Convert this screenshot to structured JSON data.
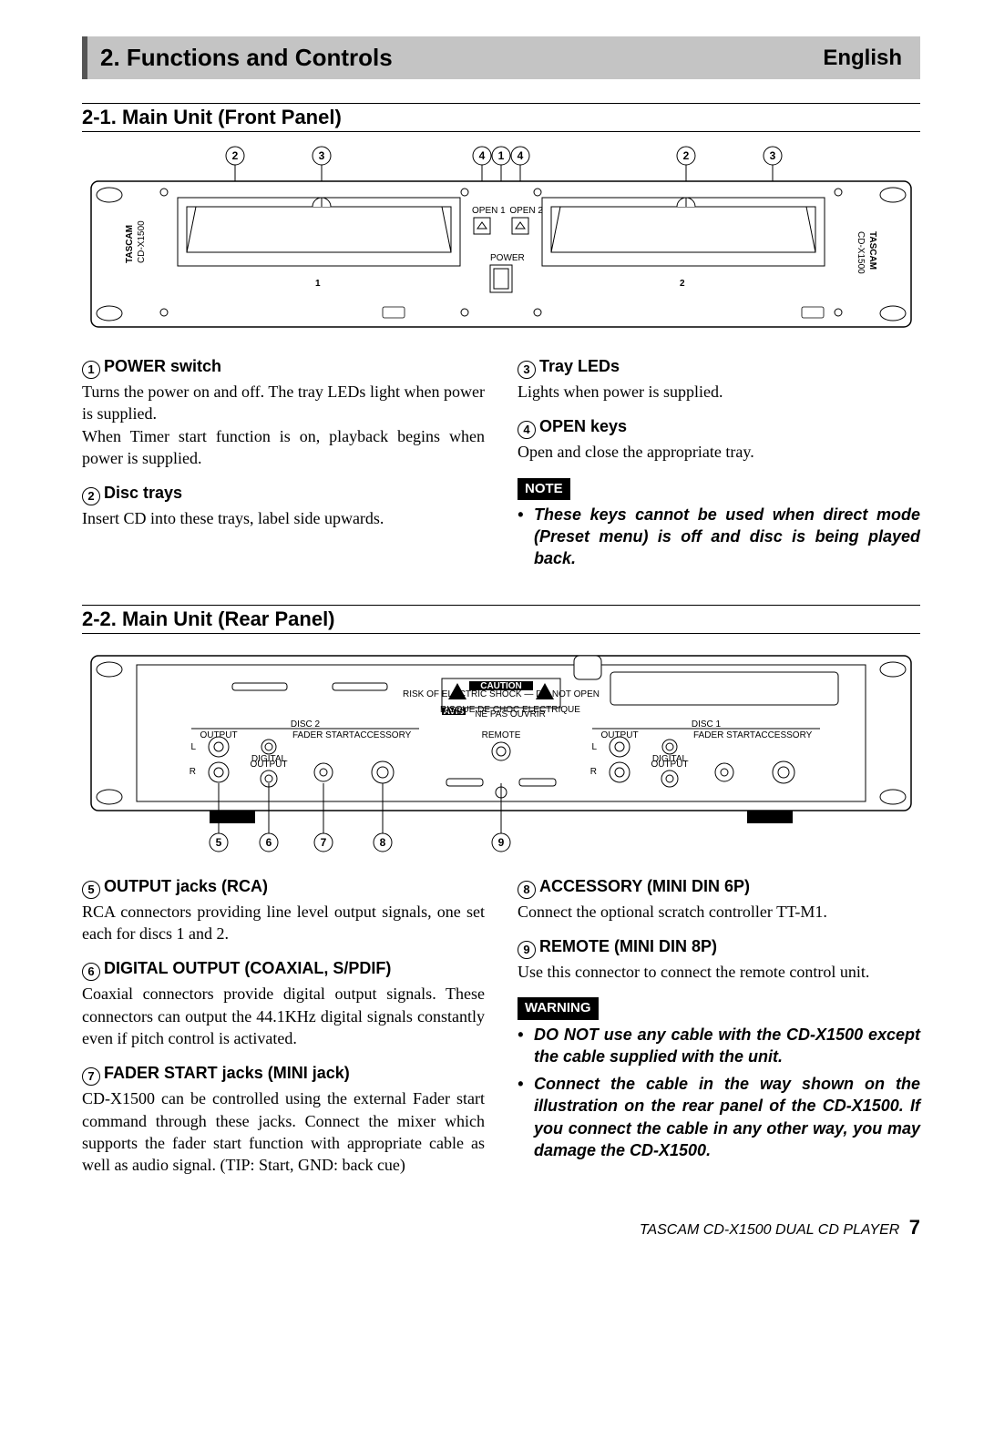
{
  "header": {
    "title": "2. Functions and Controls",
    "lang": "English"
  },
  "section1": {
    "title": "2-1. Main Unit (Front Panel)",
    "callouts_top": [
      "2",
      "3",
      "4",
      "1",
      "4",
      "2",
      "3"
    ],
    "diagram": {
      "brand": "TASCAM",
      "model": "CD-X1500",
      "open1": "OPEN 1",
      "open2": "OPEN 2",
      "power": "POWER",
      "tray1": "1",
      "tray2": "2"
    },
    "left": [
      {
        "num": "1",
        "title": "POWER switch",
        "body": "Turns the power on and off.  The tray LEDs light when power is supplied.\nWhen Timer start function is on, playback begins when power is supplied."
      },
      {
        "num": "2",
        "title": "Disc trays",
        "body": "Insert CD into these trays, label side upwards."
      }
    ],
    "right": [
      {
        "num": "3",
        "title": "Tray LEDs",
        "body": "Lights when power is supplied."
      },
      {
        "num": "4",
        "title": "OPEN keys",
        "body": "Open and close the appropriate tray."
      }
    ],
    "note_label": "NOTE",
    "note": "These keys cannot be used when direct mode (Preset menu) is off and disc is being played back."
  },
  "section2": {
    "title": "2-2. Main Unit (Rear Panel)",
    "callouts_bottom": [
      "5",
      "6",
      "7",
      "8",
      "9"
    ],
    "diagram": {
      "caution": "CAUTION",
      "avis": "AVIS",
      "caution_small1": "RISK OF ELECTRIC SHOCK\nDO NOT OPEN",
      "caution_small2": "RISQUE DE CHOC ELECTRIQUE\nNE PAS OUVRIR",
      "disc1": "DISC 1",
      "disc2": "DISC 2",
      "output": "OUTPUT",
      "digital": "DIGITAL\nOUTPUT",
      "fader": "FADER START",
      "acc": "ACCESSORY",
      "remote": "REMOTE",
      "L": "L",
      "R": "R"
    },
    "left": [
      {
        "num": "5",
        "title": "OUTPUT jacks (RCA)",
        "body": "RCA connectors providing line level output signals, one set each for discs 1 and 2."
      },
      {
        "num": "6",
        "title": "DIGITAL OUTPUT (COAXIAL, S/PDIF)",
        "body": "Coaxial connectors provide digital output signals. These connectors can output the 44.1KHz digital signals constantly even if pitch control is activated."
      },
      {
        "num": "7",
        "title": "FADER START jacks (MINI jack)",
        "body": "CD-X1500 can be controlled using the external Fader start command through these jacks.  Connect the mixer which supports the fader start function with appropriate cable as well as audio signal. (TIP: Start, GND: back cue)"
      }
    ],
    "right": [
      {
        "num": "8",
        "title": "ACCESSORY (MINI DIN 6P)",
        "body": "Connect the optional scratch controller TT-M1."
      },
      {
        "num": "9",
        "title": "REMOTE (MINI DIN 8P)",
        "body": "Use this connector to connect the remote control unit."
      }
    ],
    "warn_label": "WARNING",
    "warn": [
      "DO NOT use any cable with the CD-X1500 except the cable supplied with the unit.",
      "Connect the cable in the way shown on the illustration on the rear panel of the CD-X1500. If you connect the cable in any other way, you may damage the CD-X1500."
    ]
  },
  "footer": {
    "text": "TASCAM  CD-X1500  DUAL CD PLAYER",
    "page": "7"
  }
}
